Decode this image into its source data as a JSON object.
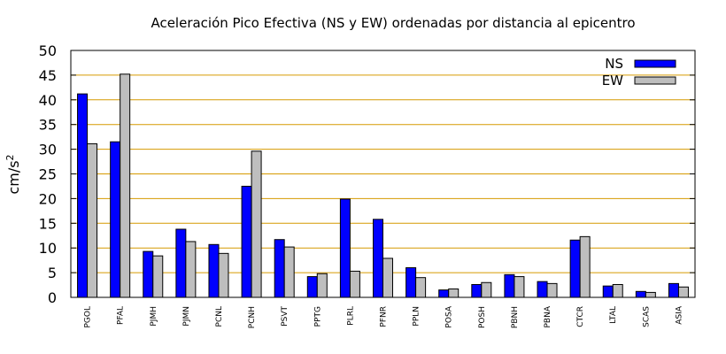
{
  "chart_data": {
    "type": "bar",
    "title": "Aceleración Pico Efectiva (NS y EW) ordenadas por distancia al epicentro",
    "xlabel": "",
    "ylabel": "cm/s",
    "ylabel_superscript": "2",
    "ylim": [
      0,
      50
    ],
    "yticks": [
      0,
      5,
      10,
      15,
      20,
      25,
      30,
      35,
      40,
      45,
      50
    ],
    "grid": true,
    "legend_position": "top-right",
    "categories": [
      "PGOL",
      "PFAL",
      "PJMH",
      "PJMN",
      "PCNL",
      "PCNH",
      "PSVT",
      "PPTG",
      "PLRL",
      "PFNR",
      "PPLN",
      "POSA",
      "POSH",
      "PBNH",
      "PBNA",
      "CTCR",
      "LTAL",
      "SCAS",
      "ASIA"
    ],
    "series": [
      {
        "name": "NS",
        "color": "#0000ff",
        "values": [
          41.2,
          31.5,
          9.3,
          13.8,
          10.7,
          22.5,
          11.7,
          4.2,
          19.9,
          15.8,
          6.0,
          1.5,
          2.6,
          4.6,
          3.2,
          11.6,
          2.3,
          1.2,
          2.8
        ]
      },
      {
        "name": "EW",
        "color": "#bebebe",
        "values": [
          31.1,
          45.2,
          8.4,
          11.3,
          8.9,
          29.6,
          10.2,
          4.8,
          5.3,
          7.9,
          4.0,
          1.7,
          3.0,
          4.2,
          2.8,
          12.3,
          2.6,
          1.0,
          2.1
        ]
      }
    ]
  }
}
